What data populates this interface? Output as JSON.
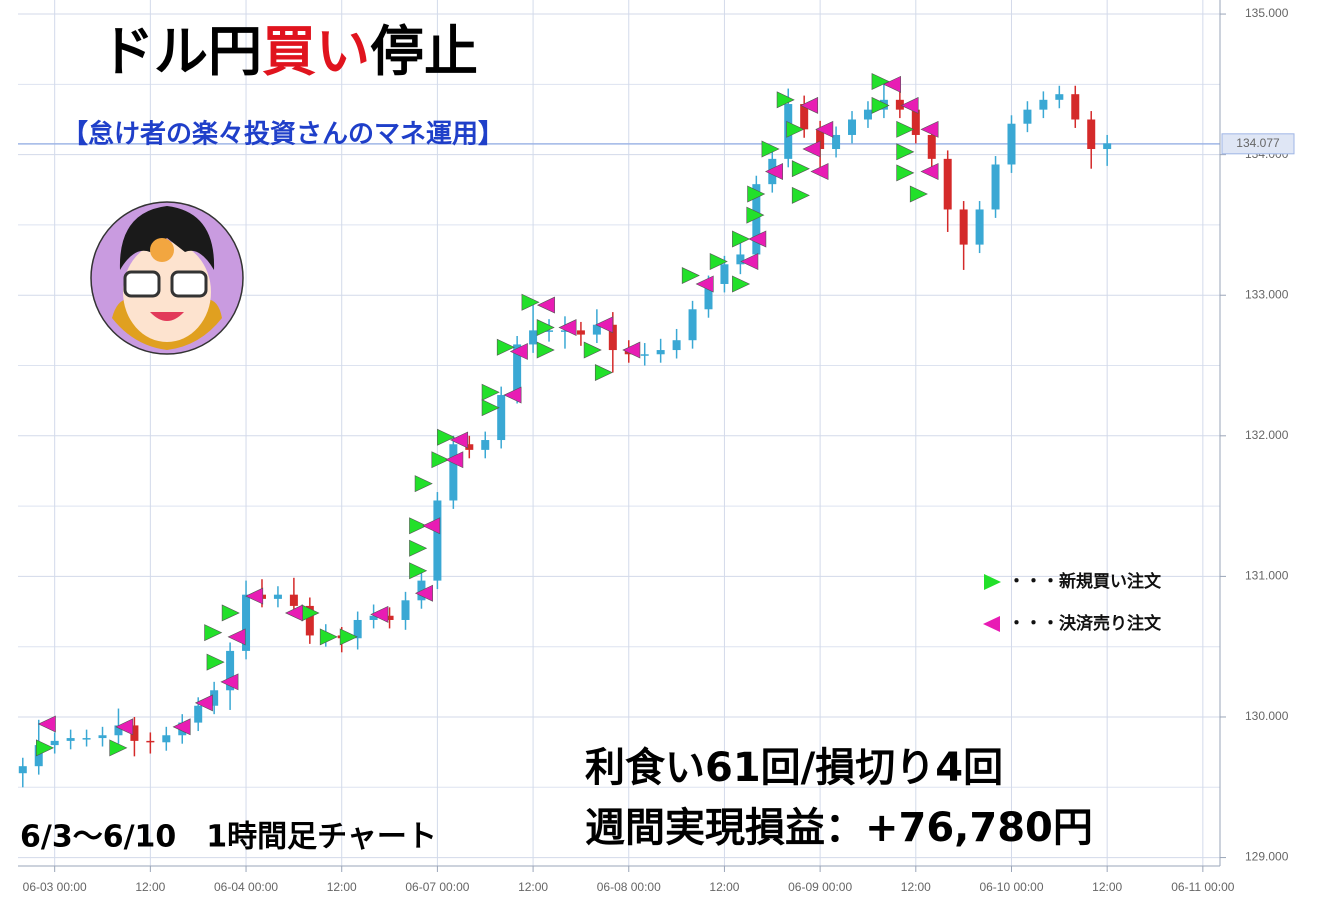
{
  "chart_data": {
    "type": "candlestick",
    "title_segments": [
      {
        "text": "ドル円",
        "color": "#000000"
      },
      {
        "text": "買い",
        "color": "#e0141e"
      },
      {
        "text": "停止",
        "color": "#000000"
      }
    ],
    "subtitle": "【怠け者の楽々投資さんのマネ運用】",
    "subtitle_color": "#1f3fc9",
    "period_label": "6/3～6/10　1時間足チャート",
    "result_lines": [
      "利食い61回/損切り4回",
      "週間実現損益：+76,780円"
    ],
    "up_color": "#3aa8d4",
    "down_color": "#d42a2a",
    "grid": true,
    "xlim": [
      -4.6,
      145.9
    ],
    "xticks": [
      {
        "value": 0,
        "label": "06-03 00:00"
      },
      {
        "value": 12,
        "label": "12:00"
      },
      {
        "value": 24,
        "label": "06-04 00:00"
      },
      {
        "value": 36,
        "label": "12:00"
      },
      {
        "value": 48,
        "label": "06-07 00:00"
      },
      {
        "value": 60,
        "label": "12:00"
      },
      {
        "value": 72,
        "label": "06-08 00:00"
      },
      {
        "value": 84,
        "label": "12:00"
      },
      {
        "value": 96,
        "label": "06-09 00:00"
      },
      {
        "value": 108,
        "label": "12:00"
      },
      {
        "value": 120,
        "label": "06-10 00:00"
      },
      {
        "value": 132,
        "label": "12:00"
      },
      {
        "value": 144,
        "label": "06-11 00:00"
      }
    ],
    "ylim": [
      128.94,
      135.1
    ],
    "yticks": [
      {
        "value": 129,
        "label": "129.000"
      },
      {
        "value": 130,
        "label": "130.000"
      },
      {
        "value": 131,
        "label": "131.000"
      },
      {
        "value": 132,
        "label": "132.000"
      },
      {
        "value": 133,
        "label": "133.000"
      },
      {
        "value": 134,
        "label": "134.000"
      },
      {
        "value": 135,
        "label": "135.000"
      }
    ],
    "minor_yticks": [
      129.5,
      130.5,
      131.5,
      132.5,
      133.5,
      134.5
    ],
    "current_price": {
      "value": 134.077,
      "label": "134.077"
    },
    "x": [
      -4,
      -2,
      0,
      2,
      4,
      6,
      8,
      10,
      12,
      14,
      16,
      18,
      20,
      22,
      24,
      26,
      28,
      30,
      32,
      34,
      36,
      38,
      40,
      42,
      44,
      46,
      48,
      50,
      52,
      54,
      56,
      58,
      60,
      62,
      64,
      66,
      68,
      70,
      72,
      74,
      76,
      78,
      80,
      82,
      84,
      86,
      88,
      90,
      92,
      94,
      96,
      98,
      100,
      102,
      104,
      106,
      108,
      110,
      112,
      114,
      116,
      118,
      120,
      122,
      124,
      126,
      128,
      130,
      132
    ],
    "open": [
      129.6,
      129.65,
      129.8,
      129.83,
      129.85,
      129.85,
      129.87,
      129.94,
      129.83,
      129.82,
      129.87,
      129.96,
      130.08,
      130.19,
      130.47,
      130.87,
      130.84,
      130.87,
      130.79,
      130.58,
      130.58,
      130.56,
      130.69,
      130.72,
      130.69,
      130.83,
      130.97,
      131.54,
      131.94,
      131.9,
      131.97,
      132.29,
      132.65,
      132.75,
      132.75,
      132.75,
      132.72,
      132.79,
      132.61,
      132.58,
      132.58,
      132.61,
      132.68,
      132.9,
      133.08,
      133.22,
      133.29,
      133.79,
      133.97,
      134.36,
      134.18,
      134.04,
      134.14,
      134.25,
      134.32,
      134.39,
      134.32,
      134.14,
      133.97,
      133.61,
      133.36,
      133.61,
      133.93,
      134.22,
      134.32,
      134.39,
      134.43,
      134.25,
      134.04
    ],
    "high": [
      129.71,
      129.98,
      129.89,
      129.91,
      129.91,
      129.93,
      130.06,
      130.0,
      129.89,
      129.93,
      130.02,
      130.14,
      130.25,
      130.53,
      130.97,
      130.98,
      130.93,
      130.99,
      130.85,
      130.66,
      130.64,
      130.75,
      130.8,
      130.78,
      130.89,
      131.03,
      131.6,
      132.0,
      132.0,
      132.03,
      132.35,
      132.71,
      132.93,
      132.83,
      132.85,
      132.81,
      132.9,
      132.88,
      132.68,
      132.66,
      132.69,
      132.76,
      132.96,
      133.14,
      133.28,
      133.37,
      133.85,
      134.03,
      134.47,
      134.42,
      134.24,
      134.2,
      134.31,
      134.38,
      134.5,
      134.45,
      134.38,
      134.2,
      134.03,
      133.67,
      133.67,
      133.99,
      134.28,
      134.38,
      134.45,
      134.49,
      134.49,
      134.31,
      134.14
    ],
    "low": [
      129.5,
      129.59,
      129.74,
      129.77,
      129.79,
      129.79,
      129.81,
      129.72,
      129.74,
      129.76,
      129.81,
      129.9,
      130.02,
      130.05,
      130.41,
      130.78,
      130.78,
      130.73,
      130.52,
      130.5,
      130.46,
      130.48,
      130.63,
      130.63,
      130.62,
      130.77,
      130.91,
      131.48,
      131.84,
      131.84,
      131.91,
      132.23,
      132.59,
      132.67,
      132.62,
      132.64,
      132.66,
      132.45,
      132.52,
      132.5,
      132.52,
      132.55,
      132.62,
      132.84,
      133.02,
      133.15,
      133.23,
      133.73,
      133.91,
      134.12,
      133.9,
      133.98,
      134.08,
      134.19,
      134.26,
      134.26,
      134.08,
      133.85,
      133.45,
      133.18,
      133.3,
      133.55,
      133.87,
      134.16,
      134.26,
      134.33,
      134.19,
      133.9,
      133.92
    ],
    "close": [
      129.65,
      129.8,
      129.83,
      129.85,
      129.85,
      129.87,
      129.94,
      129.83,
      129.82,
      129.87,
      129.96,
      130.08,
      130.19,
      130.47,
      130.87,
      130.84,
      130.87,
      130.79,
      130.58,
      130.58,
      130.56,
      130.69,
      130.72,
      130.69,
      130.83,
      130.97,
      131.54,
      131.94,
      131.9,
      131.97,
      132.29,
      132.65,
      132.75,
      132.75,
      132.75,
      132.72,
      132.79,
      132.61,
      132.58,
      132.58,
      132.61,
      132.68,
      132.9,
      133.08,
      133.22,
      133.29,
      133.79,
      133.97,
      134.36,
      134.18,
      134.04,
      134.14,
      134.25,
      134.32,
      134.39,
      134.32,
      134.14,
      133.97,
      133.61,
      133.36,
      133.61,
      133.93,
      134.22,
      134.32,
      134.39,
      134.43,
      134.25,
      134.04,
      134.08
    ],
    "markers": [
      {
        "name": "・・・新規買い注文",
        "color": "#22e02a",
        "direction": "right",
        "x": [
          -1.3,
          7.9,
          19.8,
          20.1,
          22,
          32,
          34.3,
          36.8,
          45.5,
          45.5,
          45.5,
          46.2,
          48.3,
          49,
          54.6,
          54.6,
          56.5,
          59.6,
          61.5,
          61.5,
          67.4,
          68.8,
          79.7,
          83.2,
          86,
          86,
          87.8,
          87.9,
          89.7,
          91.6,
          92.8,
          93.5,
          93.5,
          103.5,
          103.5,
          106.6,
          106.6,
          106.6,
          108.3
        ],
        "values": [
          129.78,
          129.78,
          130.6,
          130.39,
          130.74,
          130.74,
          130.57,
          130.57,
          131.04,
          131.2,
          131.36,
          131.66,
          131.83,
          131.99,
          132.31,
          132.2,
          132.63,
          132.95,
          132.61,
          132.77,
          132.61,
          132.45,
          133.14,
          133.24,
          133.4,
          133.08,
          133.57,
          133.72,
          134.04,
          134.39,
          134.18,
          133.9,
          133.71,
          134.52,
          134.35,
          134.18,
          134.02,
          133.87,
          133.72
        ]
      },
      {
        "name": "・・・決済売り注文",
        "color": "#e81cb4",
        "direction": "left",
        "x": [
          -0.9,
          8.8,
          16,
          18.8,
          22,
          22.9,
          25.1,
          30.1,
          40.8,
          46.4,
          47.3,
          50.8,
          50.2,
          57.5,
          58.3,
          61.7,
          64.4,
          69,
          72.4,
          81.6,
          87.2,
          88.2,
          90.3,
          94.7,
          95,
          96,
          96.6,
          105.1,
          107.3,
          109.8,
          109.8
        ],
        "values": [
          129.95,
          129.93,
          129.93,
          130.1,
          130.25,
          130.57,
          130.86,
          130.74,
          130.73,
          130.88,
          131.36,
          131.97,
          131.83,
          132.29,
          132.6,
          132.93,
          132.77,
          132.79,
          132.61,
          133.08,
          133.24,
          133.4,
          133.88,
          134.35,
          134.04,
          133.88,
          134.18,
          134.5,
          134.35,
          134.18,
          133.88
        ]
      }
    ]
  }
}
